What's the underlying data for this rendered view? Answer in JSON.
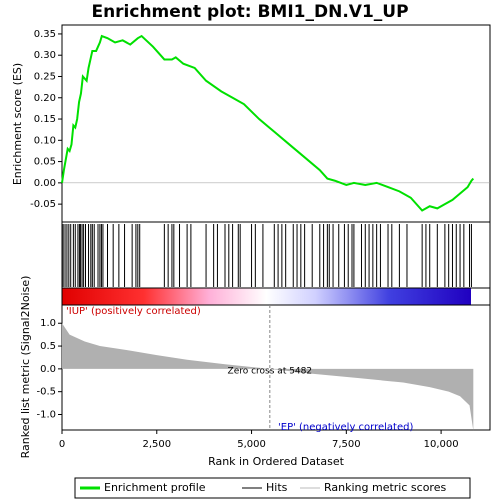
{
  "chart_data": {
    "type": "line",
    "title": "Enrichment plot: BMI1_DN.V1_UP",
    "ylabel": "Enrichment score (ES)",
    "xlabel": "Rank in Ordered Dataset",
    "color": "#00e000",
    "xlim": [
      0,
      11290
    ],
    "xticks": [
      0,
      {
        "value": 2500,
        "label": "2,500"
      },
      {
        "value": 5000,
        "label": "5,000"
      },
      {
        "value": 7500,
        "label": "7,500"
      },
      {
        "value": 10000,
        "label": "10,000"
      }
    ],
    "ylim": [
      -0.092,
      0.371
    ],
    "yticks": [
      -0.05,
      {
        "value": 0,
        "label": "0.00"
      },
      0.05,
      {
        "value": 0.1,
        "label": "0.10"
      },
      0.15,
      {
        "value": 0.2,
        "label": "0.20"
      },
      0.25,
      {
        "value": 0.3,
        "label": "0.30"
      },
      0.35
    ],
    "x": [
      0,
      50,
      100,
      150,
      200,
      250,
      300,
      350,
      400,
      450,
      500,
      550,
      650,
      700,
      800,
      900,
      1000,
      1050,
      1200,
      1400,
      1600,
      1800,
      2000,
      2100,
      2400,
      2700,
      2900,
      3000,
      3200,
      3500,
      3800,
      4200,
      4500,
      4800,
      5200,
      5600,
      6000,
      6400,
      6800,
      7000,
      7200,
      7500,
      7700,
      8000,
      8300,
      8600,
      8900,
      9200,
      9500,
      9700,
      9900,
      10100,
      10300,
      10500,
      10700,
      10800,
      10850
    ],
    "values": [
      0,
      0.03,
      0.055,
      0.08,
      0.075,
      0.09,
      0.135,
      0.13,
      0.15,
      0.19,
      0.21,
      0.25,
      0.24,
      0.27,
      0.31,
      0.31,
      0.33,
      0.345,
      0.34,
      0.33,
      0.335,
      0.325,
      0.34,
      0.345,
      0.32,
      0.29,
      0.29,
      0.295,
      0.28,
      0.27,
      0.24,
      0.215,
      0.2,
      0.185,
      0.15,
      0.12,
      0.09,
      0.06,
      0.03,
      0.01,
      0.005,
      -0.005,
      0,
      -0.005,
      0,
      -0.01,
      -0.02,
      -0.035,
      -0.065,
      -0.055,
      -0.06,
      -0.05,
      -0.04,
      -0.025,
      -0.01,
      0.005,
      0.01
    ],
    "hits": [
      30,
      80,
      130,
      180,
      230,
      300,
      350,
      420,
      460,
      490,
      530,
      570,
      620,
      700,
      760,
      800,
      850,
      950,
      1000,
      1040,
      1080,
      1200,
      1350,
      1500,
      1650,
      1850,
      1950,
      2000,
      2050,
      2700,
      2800,
      2900,
      2950,
      3100,
      3300,
      3400,
      3800,
      4000,
      4100,
      4300,
      4400,
      4500,
      4650,
      4700,
      5000,
      5100,
      5300,
      5600,
      5700,
      5800,
      5900,
      6100,
      6200,
      6300,
      6400,
      6600,
      6800,
      6900,
      7000,
      7050,
      7150,
      7300,
      7450,
      7550,
      7650,
      7700,
      7900,
      8000,
      8100,
      8200,
      8300,
      8400,
      8600,
      8700,
      8900,
      9100,
      9500,
      9600,
      9700,
      9900,
      10100,
      10200,
      10300,
      10400,
      10500,
      10600,
      10750,
      10800
    ],
    "metric": {
      "ylabel": "Ranked list metric (Signal2Noise)",
      "color": "#b0b0b0",
      "ylim": [
        -1.34,
        1.4
      ],
      "yticks": [
        {
          "value": -1,
          "label": "-1.0"
        },
        -0.5,
        {
          "value": 0,
          "label": "0.0"
        },
        0.5,
        {
          "value": 1,
          "label": "1.0"
        }
      ],
      "x": [
        0,
        200,
        600,
        1000,
        1800,
        2500,
        3300,
        4300,
        5482,
        6500,
        7800,
        9000,
        9700,
        10200,
        10500,
        10750,
        10850
      ],
      "values": [
        1.0,
        0.75,
        0.6,
        0.5,
        0.4,
        0.3,
        0.2,
        0.1,
        0,
        -0.1,
        -0.2,
        -0.3,
        -0.4,
        -0.5,
        -0.6,
        -0.8,
        -1.35
      ],
      "zero_cross": 5482,
      "zero_label": "Zero cross at 5482",
      "pos_label": "'IUP' (positively correlated)",
      "neg_label": "'EP' (negatively correlated)"
    },
    "legend": [
      "Enrichment profile",
      "Hits",
      "Ranking metric scores"
    ]
  }
}
